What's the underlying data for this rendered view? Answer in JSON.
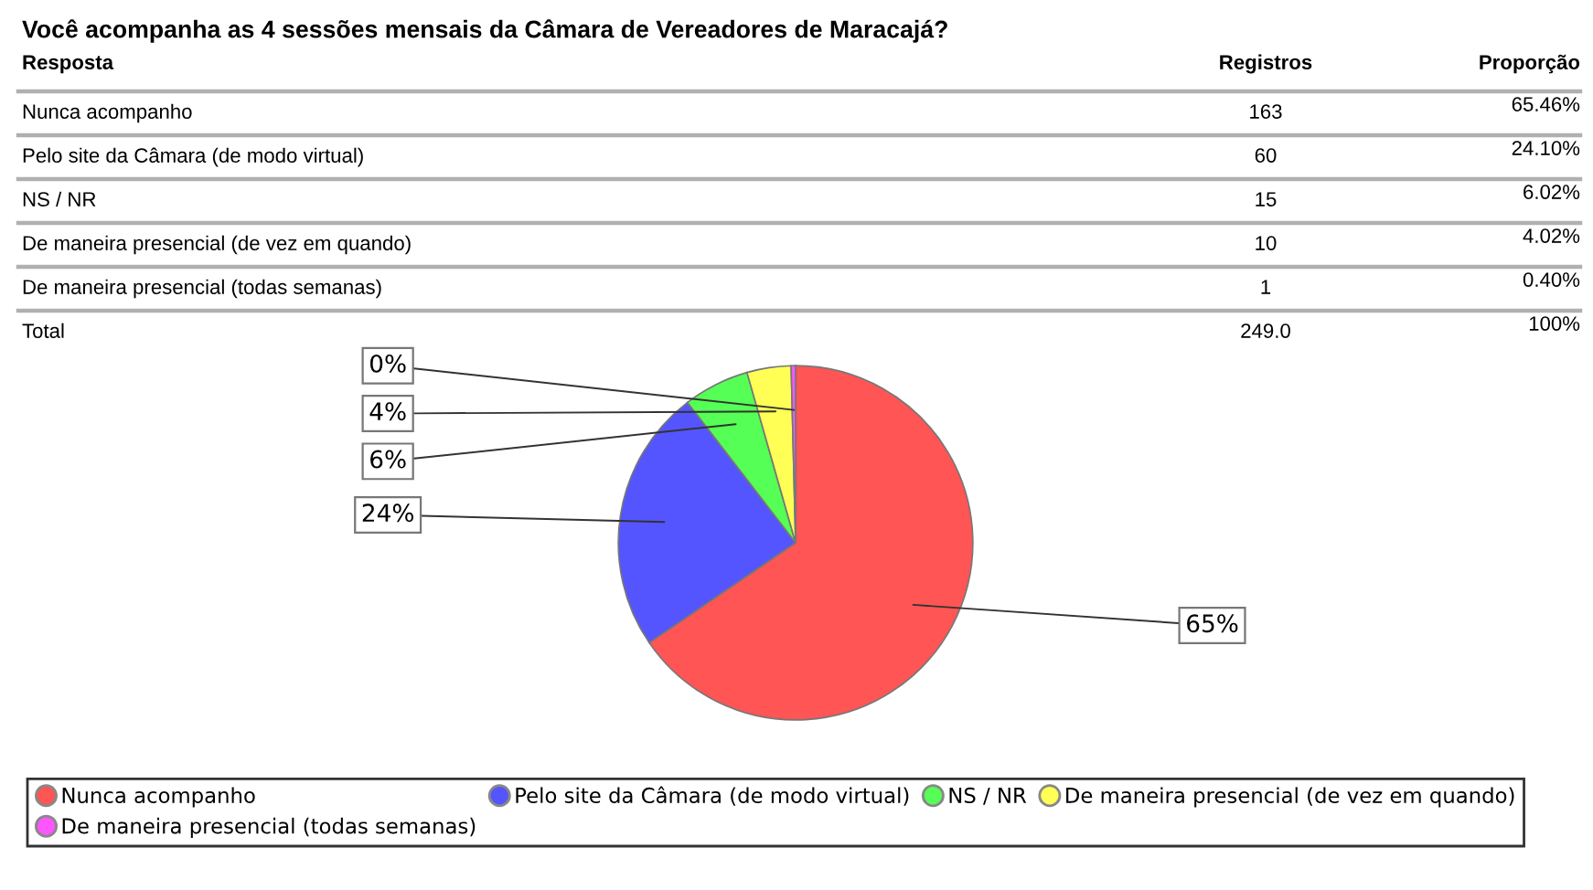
{
  "chart_data": {
    "type": "pie",
    "title": "Você acompanha as 4 sessões mensais da Câmara de Vereadores de Maracajá?",
    "categories": [
      "Nunca acompanho",
      "Pelo site da Câmara (de modo virtual)",
      "NS / NR",
      "De maneira presencial (de vez em quando)",
      "De maneira presencial (todas semanas)"
    ],
    "values": [
      65.46,
      24.1,
      6.02,
      4.02,
      0.4
    ],
    "colors": [
      "#ff5555",
      "#5555ff",
      "#55ff55",
      "#ffff55",
      "#ff55ff"
    ],
    "value_labels": [
      "65%",
      "24%",
      "6%",
      "4%",
      "0%"
    ],
    "annotations": [
      "Resposta",
      "Registros",
      "Proporção",
      "163",
      "65.46%",
      "60",
      "24.10%",
      "15",
      "6.02%",
      "10",
      "4.02%",
      "1",
      "0.40%",
      "Total",
      "249.0",
      "100%"
    ],
    "legend": "bottom"
  }
}
